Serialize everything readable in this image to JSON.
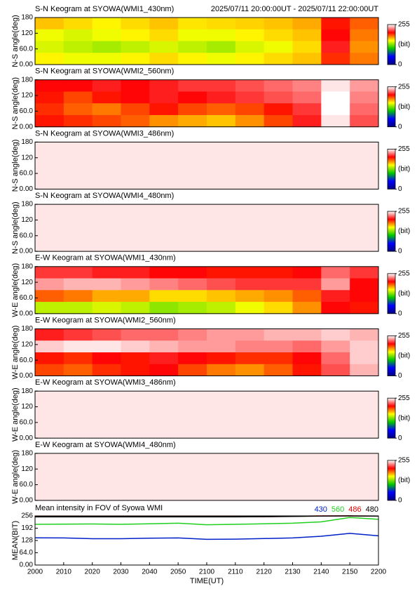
{
  "chart_data": [
    {
      "type": "heatmap",
      "title": "S-N Keogram at SYOWA(WMI1_430nm)",
      "subtitle": "2025/07/11 20:00:00UT - 2025/07/11 22:00:00UT",
      "ylabel": "N-S angle(deg)",
      "ylim": [
        0,
        180
      ],
      "yticks": [
        180,
        120,
        {
          "value": 60,
          "label": "60.0"
        },
        {
          "value": 0,
          "label": "0.00"
        }
      ],
      "xlim": [
        0,
        120
      ],
      "clim": [
        0,
        255
      ],
      "cticks": [
        255,
        0
      ],
      "colorbar_label": "(bit)",
      "values": [
        [
          165,
          160,
          155,
          160,
          165,
          158,
          160,
          162,
          165,
          170,
          200,
          185
        ],
        [
          150,
          145,
          150,
          155,
          160,
          150,
          150,
          155,
          160,
          165,
          205,
          180
        ],
        [
          145,
          140,
          135,
          140,
          145,
          140,
          135,
          145,
          150,
          160,
          210,
          175
        ],
        [
          155,
          150,
          150,
          155,
          160,
          155,
          150,
          155,
          160,
          165,
          195,
          180
        ]
      ]
    },
    {
      "type": "heatmap",
      "title": "S-N Keogram at SYOWA(WMI2_560nm)",
      "ylabel": "N-S angle(deg)",
      "ylim": [
        0,
        180
      ],
      "yticks": [
        180,
        120,
        {
          "value": 60,
          "label": "60.0"
        },
        {
          "value": 0,
          "label": "0.00"
        }
      ],
      "xlim": [
        0,
        120
      ],
      "clim": [
        0,
        255
      ],
      "cticks": [
        255,
        0
      ],
      "colorbar_label": "(bit)",
      "values": [
        [
          205,
          205,
          210,
          205,
          210,
          215,
          215,
          220,
          225,
          230,
          250,
          235
        ],
        [
          200,
          190,
          200,
          205,
          210,
          205,
          210,
          215,
          220,
          225,
          255,
          230
        ],
        [
          195,
          185,
          180,
          190,
          200,
          190,
          185,
          190,
          200,
          215,
          255,
          225
        ],
        [
          200,
          195,
          190,
          185,
          175,
          170,
          165,
          175,
          190,
          210,
          250,
          220
        ]
      ]
    },
    {
      "type": "heatmap",
      "title": "S-N Keogram at SYOWA(WMI3_486nm)",
      "ylabel": "N-S angle(deg)",
      "ylim": [
        0,
        180
      ],
      "yticks": [
        180,
        120,
        {
          "value": 60,
          "label": "60.0"
        },
        {
          "value": 0,
          "label": "0.00"
        }
      ],
      "xlim": [
        0,
        120
      ],
      "clim": [
        0,
        255
      ],
      "cticks": [
        255,
        0
      ],
      "colorbar_label": "(bit)",
      "values": [
        [
          250,
          250,
          250,
          250,
          250,
          250,
          250,
          250,
          250,
          250,
          250,
          250
        ],
        [
          250,
          250,
          250,
          250,
          250,
          250,
          250,
          250,
          250,
          250,
          250,
          250
        ],
        [
          250,
          250,
          250,
          250,
          250,
          250,
          250,
          250,
          250,
          250,
          250,
          250
        ],
        [
          250,
          250,
          250,
          250,
          250,
          250,
          250,
          250,
          250,
          250,
          250,
          250
        ]
      ]
    },
    {
      "type": "heatmap",
      "title": "S-N Keogram at SYOWA(WMI4_480nm)",
      "ylabel": "N-S angle(deg)",
      "ylim": [
        0,
        180
      ],
      "yticks": [
        180,
        120,
        {
          "value": 60,
          "label": "60.0"
        },
        {
          "value": 0,
          "label": "0.00"
        }
      ],
      "xlim": [
        0,
        120
      ],
      "clim": [
        0,
        255
      ],
      "cticks": [
        255,
        0
      ],
      "colorbar_label": "(bit)",
      "values": [
        [
          250,
          250,
          250,
          250,
          250,
          250,
          250,
          250,
          250,
          250,
          250,
          250
        ],
        [
          250,
          250,
          250,
          250,
          250,
          250,
          250,
          250,
          250,
          250,
          250,
          250
        ],
        [
          250,
          250,
          250,
          250,
          250,
          250,
          250,
          250,
          250,
          250,
          250,
          250
        ],
        [
          250,
          250,
          250,
          250,
          250,
          250,
          250,
          250,
          250,
          250,
          250,
          250
        ]
      ]
    },
    {
      "type": "heatmap",
      "title": "E-W Keogram at SYOWA(WMI1_430nm)",
      "ylabel": "W-E angle(deg)",
      "ylim": [
        0,
        180
      ],
      "yticks": [
        180,
        120,
        {
          "value": 60,
          "label": "60.0"
        },
        {
          "value": 0,
          "label": "0.00"
        }
      ],
      "xlim": [
        0,
        120
      ],
      "clim": [
        0,
        255
      ],
      "cticks": [
        255,
        0
      ],
      "colorbar_label": "(bit)",
      "values": [
        [
          215,
          215,
          210,
          210,
          205,
          205,
          200,
          200,
          200,
          205,
          225,
          215
        ],
        [
          235,
          240,
          240,
          235,
          230,
          225,
          220,
          215,
          215,
          215,
          235,
          205
        ],
        [
          185,
          180,
          170,
          170,
          160,
          160,
          165,
          170,
          175,
          185,
          210,
          205
        ],
        [
          140,
          140,
          145,
          140,
          130,
          135,
          140,
          150,
          160,
          175,
          205,
          200
        ]
      ]
    },
    {
      "type": "heatmap",
      "title": "E-W Keogram at SYOWA(WMI2_560nm)",
      "ylabel": "W-E angle(deg)",
      "ylim": [
        0,
        180
      ],
      "yticks": [
        180,
        120,
        {
          "value": 60,
          "label": "60.0"
        },
        {
          "value": 0,
          "label": "0.00"
        }
      ],
      "xlim": [
        0,
        120
      ],
      "clim": [
        0,
        255
      ],
      "cticks": [
        255,
        0
      ],
      "colorbar_label": "(bit)",
      "values": [
        [
          210,
          215,
          220,
          225,
          225,
          230,
          235,
          235,
          240,
          240,
          245,
          240
        ],
        [
          245,
          250,
          250,
          245,
          240,
          235,
          235,
          230,
          230,
          225,
          235,
          245
        ],
        [
          200,
          195,
          205,
          200,
          210,
          205,
          200,
          195,
          195,
          205,
          225,
          245
        ],
        [
          190,
          185,
          195,
          200,
          205,
          190,
          180,
          175,
          185,
          200,
          220,
          240
        ]
      ]
    },
    {
      "type": "heatmap",
      "title": "E-W Keogram at SYOWA(WMI3_486nm)",
      "ylabel": "W-E angle(deg)",
      "ylim": [
        0,
        180
      ],
      "yticks": [
        180,
        120,
        {
          "value": 60,
          "label": "60.0"
        },
        {
          "value": 0,
          "label": "0.00"
        }
      ],
      "xlim": [
        0,
        120
      ],
      "clim": [
        0,
        255
      ],
      "cticks": [
        255,
        0
      ],
      "colorbar_label": "(bit)",
      "values": [
        [
          250,
          250,
          250,
          250,
          250,
          250,
          250,
          250,
          250,
          250,
          250,
          250
        ],
        [
          250,
          250,
          250,
          250,
          250,
          250,
          250,
          250,
          250,
          250,
          250,
          250
        ],
        [
          250,
          250,
          250,
          250,
          250,
          250,
          250,
          250,
          250,
          250,
          250,
          250
        ],
        [
          250,
          250,
          250,
          250,
          250,
          250,
          250,
          250,
          250,
          250,
          250,
          250
        ]
      ]
    },
    {
      "type": "heatmap",
      "title": "E-W Keogram at SYOWA(WMI4_480nm)",
      "ylabel": "W-E angle(deg)",
      "ylim": [
        0,
        180
      ],
      "yticks": [
        180,
        120,
        {
          "value": 60,
          "label": "60.0"
        },
        {
          "value": 0,
          "label": "0.00"
        }
      ],
      "xlim": [
        0,
        120
      ],
      "clim": [
        0,
        255
      ],
      "cticks": [
        255,
        0
      ],
      "colorbar_label": "(bit)",
      "values": [
        [
          250,
          250,
          250,
          250,
          250,
          250,
          250,
          250,
          250,
          250,
          250,
          250
        ],
        [
          250,
          250,
          250,
          250,
          250,
          250,
          250,
          250,
          250,
          250,
          250,
          250
        ],
        [
          250,
          250,
          250,
          250,
          250,
          250,
          250,
          250,
          250,
          250,
          250,
          250
        ],
        [
          250,
          250,
          250,
          250,
          250,
          250,
          250,
          250,
          250,
          250,
          250,
          250
        ]
      ]
    },
    {
      "type": "line",
      "title": "Mean intensity in FOV of Syowa WMI",
      "ylabel": "MEAN(BIT)",
      "xlabel": "TIME(UT)",
      "xlim": [
        0,
        120
      ],
      "ylim": [
        0,
        256
      ],
      "xticks": [
        {
          "value": 0,
          "label": "2000"
        },
        {
          "value": 10,
          "label": "2010"
        },
        {
          "value": 20,
          "label": "2020"
        },
        {
          "value": 30,
          "label": "2030"
        },
        {
          "value": 40,
          "label": "2040"
        },
        {
          "value": 50,
          "label": "2050"
        },
        {
          "value": 60,
          "label": "2100"
        },
        {
          "value": 70,
          "label": "2110"
        },
        {
          "value": 80,
          "label": "2120"
        },
        {
          "value": 90,
          "label": "2130"
        },
        {
          "value": 100,
          "label": "2140"
        },
        {
          "value": 110,
          "label": "2150"
        },
        {
          "value": 120,
          "label": "2200"
        }
      ],
      "yticks": [
        256,
        192,
        128,
        {
          "value": 64,
          "label": "64.0"
        },
        {
          "value": 0,
          "label": "0.00"
        }
      ],
      "x": [
        0,
        10,
        20,
        30,
        40,
        50,
        60,
        70,
        80,
        90,
        100,
        110,
        120
      ],
      "series": [
        {
          "name": "430",
          "color": "#0020c8",
          "values": [
            142,
            141,
            137,
            137,
            140,
            141,
            134,
            135,
            138,
            141,
            150,
            165,
            152
          ]
        },
        {
          "name": "560",
          "color": "#20d020",
          "values": [
            212,
            213,
            214,
            212,
            215,
            218,
            210,
            212,
            215,
            218,
            225,
            248,
            238
          ]
        },
        {
          "name": "486",
          "color": "#e00000",
          "values": [
            252,
            252,
            252,
            252,
            252,
            252,
            252,
            252,
            252,
            254,
            256,
            256,
            255
          ]
        },
        {
          "name": "480",
          "color": "#000000",
          "values": [
            251,
            251,
            251,
            251,
            251,
            251,
            251,
            251,
            252,
            253,
            255,
            256,
            255
          ]
        }
      ]
    }
  ]
}
